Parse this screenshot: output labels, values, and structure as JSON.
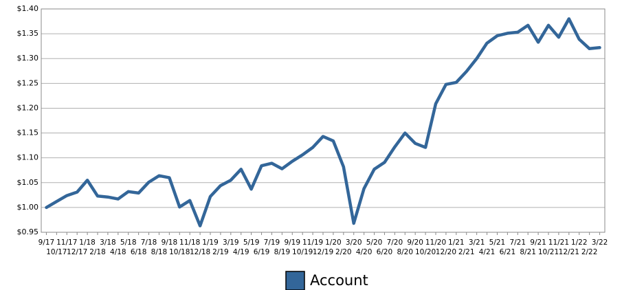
{
  "chart_data": {
    "type": "line",
    "categories": [
      "9/17",
      "10/17",
      "11/17",
      "12/17",
      "1/18",
      "2/18",
      "3/18",
      "4/18",
      "5/18",
      "6/18",
      "7/18",
      "8/18",
      "9/18",
      "10/18",
      "11/18",
      "12/18",
      "1/19",
      "2/19",
      "3/19",
      "4/19",
      "5/19",
      "6/19",
      "7/19",
      "8/19",
      "9/19",
      "10/19",
      "11/19",
      "12/19",
      "1/20",
      "2/20",
      "3/20",
      "4/20",
      "5/20",
      "6/20",
      "7/20",
      "8/20",
      "9/20",
      "10/20",
      "11/20",
      "12/20",
      "1/21",
      "2/21",
      "3/21",
      "4/21",
      "5/21",
      "6/21",
      "7/21",
      "8/21",
      "9/21",
      "10/21",
      "11/21",
      "12/21",
      "1/22",
      "2/22",
      "3/22"
    ],
    "series": [
      {
        "name": "Account",
        "color": "#336699",
        "values": [
          1.0,
          1.012,
          1.024,
          1.031,
          1.055,
          1.023,
          1.021,
          1.017,
          1.032,
          1.029,
          1.051,
          1.064,
          1.06,
          1.001,
          1.014,
          0.963,
          1.022,
          1.044,
          1.055,
          1.077,
          1.037,
          1.084,
          1.089,
          1.078,
          1.093,
          1.106,
          1.121,
          1.143,
          1.134,
          1.082,
          0.968,
          1.038,
          1.077,
          1.091,
          1.122,
          1.15,
          1.129,
          1.121,
          1.209,
          1.248,
          1.252,
          1.274,
          1.3,
          1.331,
          1.346,
          1.351,
          1.353,
          1.367,
          1.333,
          1.367,
          1.343,
          1.38,
          1.339,
          1.32,
          1.322
        ]
      }
    ],
    "ylim": [
      0.95,
      1.4
    ],
    "yticks": [
      {
        "value": 0.95,
        "label": "$0.95"
      },
      {
        "value": 1.0,
        "label": "$1.00"
      },
      {
        "value": 1.05,
        "label": "$1.05"
      },
      {
        "value": 1.1,
        "label": "$1.10"
      },
      {
        "value": 1.15,
        "label": "$1.15"
      },
      {
        "value": 1.2,
        "label": "$1.20"
      },
      {
        "value": 1.25,
        "label": "$1.25"
      },
      {
        "value": 1.3,
        "label": "$1.30"
      },
      {
        "value": 1.35,
        "label": "$1.35"
      },
      {
        "value": 1.4,
        "label": "$1.40"
      }
    ],
    "grid": true,
    "legend": "bottom"
  }
}
